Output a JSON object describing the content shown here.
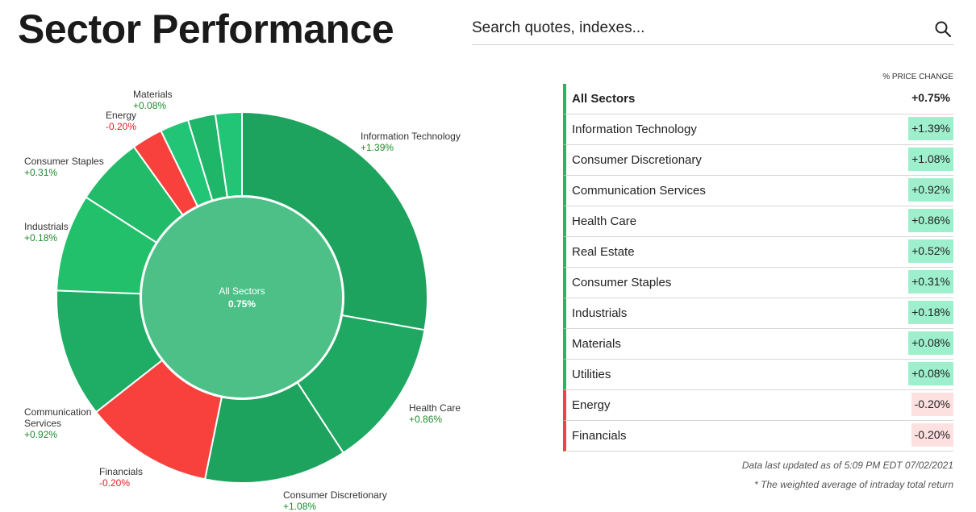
{
  "page": {
    "title": "Sector Performance"
  },
  "search": {
    "placeholder": "Search quotes, indexes..."
  },
  "table": {
    "column_header": "% PRICE CHANGE",
    "total": {
      "name": "All Sectors",
      "value": "+0.75%"
    },
    "rows": [
      {
        "name": "Information Technology",
        "value": "+1.39%",
        "dir": "up"
      },
      {
        "name": "Consumer Discretionary",
        "value": "+1.08%",
        "dir": "up"
      },
      {
        "name": "Communication Services",
        "value": "+0.92%",
        "dir": "up"
      },
      {
        "name": "Health Care",
        "value": "+0.86%",
        "dir": "up"
      },
      {
        "name": "Real Estate",
        "value": "+0.52%",
        "dir": "up"
      },
      {
        "name": "Consumer Staples",
        "value": "+0.31%",
        "dir": "up"
      },
      {
        "name": "Industrials",
        "value": "+0.18%",
        "dir": "up"
      },
      {
        "name": "Materials",
        "value": "+0.08%",
        "dir": "up"
      },
      {
        "name": "Utilities",
        "value": "+0.08%",
        "dir": "up"
      },
      {
        "name": "Energy",
        "value": "-0.20%",
        "dir": "down"
      },
      {
        "name": "Financials",
        "value": "-0.20%",
        "dir": "down"
      }
    ]
  },
  "footnotes": {
    "updated": "Data last updated as of 5:09 PM EDT 07/02/2021",
    "weighted": "* The weighted average of intraday total return"
  },
  "colors": {
    "up_dark": "#1ea35f",
    "up": "#23c06b",
    "up_light": "#22c576",
    "down": "#f8413d",
    "center": "#4cc087"
  },
  "chart_data": {
    "type": "donut",
    "center_label": "All Sectors",
    "center_value": "0.75%",
    "slices_order_clockwise_from_top": [
      {
        "name": "Information Technology",
        "value": "+1.39%",
        "weight": 27.8,
        "color": "#1ea35f"
      },
      {
        "name": "Health Care",
        "value": "+0.86%",
        "weight": 13.0,
        "color": "#1fa862"
      },
      {
        "name": "Consumer Discretionary",
        "value": "+1.08%",
        "weight": 12.4,
        "color": "#1ea35f"
      },
      {
        "name": "Financials",
        "value": "-0.20%",
        "weight": 11.2,
        "color": "#f8413d"
      },
      {
        "name": "Communication Services",
        "value": "+0.92%",
        "weight": 11.2,
        "color": "#1fad65"
      },
      {
        "name": "Industrials",
        "value": "+0.18%",
        "weight": 8.5,
        "color": "#23c06b"
      },
      {
        "name": "Consumer Staples",
        "value": "+0.31%",
        "weight": 6.0,
        "color": "#22bb6a"
      },
      {
        "name": "Energy",
        "value": "-0.20%",
        "weight": 2.7,
        "color": "#f8413d"
      },
      {
        "name": "Utilities",
        "value": "",
        "weight": 2.5,
        "color": "#22c576"
      },
      {
        "name": "Real Estate",
        "value": "",
        "weight": 2.4,
        "color": "#20b66a"
      },
      {
        "name": "Materials",
        "value": "+0.08%",
        "weight": 2.3,
        "color": "#22c576"
      }
    ]
  }
}
